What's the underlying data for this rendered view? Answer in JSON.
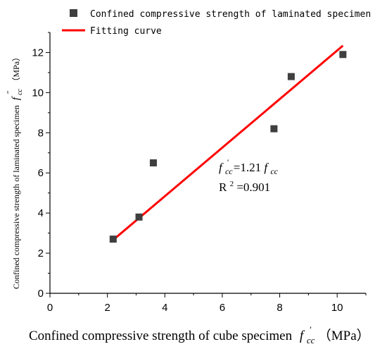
{
  "chart_data": {
    "type": "scatter",
    "xlabel_main": "Confined compressive strength of cube specimen",
    "xlabel_symbol": "f",
    "xlabel_sub": "cc",
    "xlabel_sup": "′",
    "xlabel_unit": "（MPa）",
    "ylabel_main": "Confined compressive strength of laminated specimen",
    "ylabel_symbol": "f",
    "ylabel_sub": "cc",
    "ylabel_sup": "′′",
    "ylabel_unit": "（MPa）",
    "xlim": [
      0,
      11
    ],
    "ylim": [
      0,
      13
    ],
    "x_ticks": [
      0,
      2,
      4,
      6,
      8,
      10
    ],
    "y_ticks": [
      0,
      2,
      4,
      6,
      8,
      10,
      12
    ],
    "grid": false,
    "legend_position": "top-right",
    "series": [
      {
        "name": "Confined compressive strength of laminated specimen",
        "kind": "scatter",
        "color": "#3f3f3f",
        "points": [
          {
            "x": 2.2,
            "y": 2.7
          },
          {
            "x": 3.1,
            "y": 3.8
          },
          {
            "x": 3.6,
            "y": 6.5
          },
          {
            "x": 7.8,
            "y": 8.2
          },
          {
            "x": 8.4,
            "y": 10.8
          },
          {
            "x": 10.2,
            "y": 11.9
          }
        ]
      },
      {
        "name": "Fitting curve",
        "kind": "line",
        "color": "#ff0000",
        "points": [
          {
            "x": 2.2,
            "y": 2.66
          },
          {
            "x": 10.2,
            "y": 12.34
          }
        ]
      }
    ],
    "annotation": {
      "eq_f1": "f",
      "eq_sub1": "cc",
      "eq_sup1": "′",
      "eq_mid": "=1.21",
      "eq_f2": "f",
      "eq_sub2": "cc",
      "r2_prefix": "R",
      "r2_sup": "2",
      "r2_value": "=0.901"
    }
  }
}
